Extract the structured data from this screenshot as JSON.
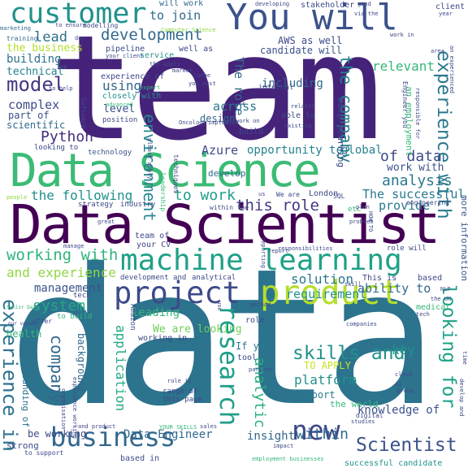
{
  "colors": {
    "background": "#ffffff",
    "palette": [
      "#440154",
      "#482878",
      "#3e4989",
      "#31688e",
      "#26828e",
      "#1f9e89",
      "#35b779",
      "#6ece58",
      "#b5de2b",
      "#fde725"
    ]
  },
  "words": [
    {
      "text": "team",
      "color": "#482677"
    },
    {
      "text": "data",
      "color": "#2c728e"
    },
    {
      "text": "Data Scientist",
      "color": "#440154"
    },
    {
      "text": "Data Science",
      "color": "#35b779"
    },
    {
      "text": "You will",
      "color": "#3b528b"
    },
    {
      "text": "customer",
      "color": "#21918c"
    },
    {
      "text": "machine learning",
      "color": "#1fa187"
    },
    {
      "text": "product",
      "color": "#b5de2b"
    },
    {
      "text": "project",
      "color": "#3e4a89"
    },
    {
      "text": "business",
      "color": "#31688e"
    },
    {
      "text": "research",
      "color": "#1f9e89"
    },
    {
      "text": "new",
      "color": "#3e4989"
    },
    {
      "text": "development",
      "color": "#31688e"
    },
    {
      "text": "the company",
      "color": "#27808e"
    },
    {
      "text": "model",
      "color": "#453781"
    },
    {
      "text": "Python",
      "color": "#472d7b"
    },
    {
      "text": "environment",
      "color": "#25858e"
    },
    {
      "text": "experience with",
      "color": "#2a788e"
    },
    {
      "text": "skills and",
      "color": "#21918c"
    },
    {
      "text": "Scientist",
      "color": "#3b528b"
    },
    {
      "text": "experience in",
      "color": "#2c728e"
    },
    {
      "text": "looking for",
      "color": "#1fa187"
    },
    {
      "text": "working with",
      "color": "#2fb47c"
    },
    {
      "text": "the following",
      "color": "#21918c"
    },
    {
      "text": "this role",
      "color": "#443983"
    },
    {
      "text": "company",
      "color": "#31688e"
    },
    {
      "text": "application",
      "color": "#22a884"
    },
    {
      "text": "analytic",
      "color": "#29af7f"
    },
    {
      "text": "system",
      "color": "#22a884"
    },
    {
      "text": "within",
      "color": "#31688e"
    },
    {
      "text": "analysis",
      "color": "#2a788e"
    },
    {
      "text": "to work",
      "color": "#1f9e89"
    },
    {
      "text": "lead",
      "color": "#2d708e"
    },
    {
      "text": "to join",
      "color": "#31688e"
    },
    {
      "text": "of data",
      "color": "#3e4989"
    },
    {
      "text": "platform",
      "color": "#21918c"
    },
    {
      "text": "solution",
      "color": "#2a788e"
    },
    {
      "text": "and experience",
      "color": "#8fd744"
    },
    {
      "text": "The successful",
      "color": "#2a788e"
    },
    {
      "text": "opportunity to",
      "color": "#26828e"
    },
    {
      "text": "Azure",
      "color": "#3e4989"
    },
    {
      "text": "across",
      "color": "#2a788e"
    },
    {
      "text": "using",
      "color": "#31688e"
    },
    {
      "text": "level",
      "color": "#3b528b"
    },
    {
      "text": "complex",
      "color": "#3e4a89"
    },
    {
      "text": "technical",
      "color": "#26828e"
    },
    {
      "text": "building",
      "color": "#2c728e"
    },
    {
      "text": "the business",
      "color": "#b5de2b"
    },
    {
      "text": "management",
      "color": "#3b528b"
    },
    {
      "text": "requirement",
      "color": "#21918c"
    },
    {
      "text": "ability to",
      "color": "#31688e"
    },
    {
      "text": "key",
      "color": "#21918c"
    },
    {
      "text": "insight",
      "color": "#31688e"
    },
    {
      "text": "knowledge of",
      "color": "#3b528b"
    },
    {
      "text": "Data Engineer",
      "color": "#31688e"
    },
    {
      "text": "be working",
      "color": "#3e4989"
    },
    {
      "text": "If you",
      "color": "#2a788e"
    },
    {
      "text": "TO APPLY",
      "color": "#c8e020"
    },
    {
      "text": "support",
      "color": "#2a788e"
    },
    {
      "text": "global",
      "color": "#26828e"
    },
    {
      "text": "provide",
      "color": "#2a788e"
    },
    {
      "text": "work with",
      "color": "#3b528b"
    },
    {
      "text": "including",
      "color": "#31688e"
    },
    {
      "text": "relevant",
      "color": "#35b779"
    },
    {
      "text": "AWS as well",
      "color": "#3e4989"
    },
    {
      "text": "candidate will",
      "color": "#3b528b"
    },
    {
      "text": "The role",
      "color": "#31688e"
    },
    {
      "text": "scientific",
      "color": "#31688e"
    },
    {
      "text": "part of",
      "color": "#3b528b"
    },
    {
      "text": "design",
      "color": "#31688e"
    },
    {
      "text": "We are looking",
      "color": "#6ece58"
    },
    {
      "text": "leading",
      "color": "#35b779"
    },
    {
      "text": "working in",
      "color": "#3e4989"
    },
    {
      "text": "background",
      "color": "#31688e"
    },
    {
      "text": "understanding of",
      "color": "#2c728e"
    },
    {
      "text": "strong",
      "color": "#3e4989"
    },
    {
      "text": "health",
      "color": "#35b779"
    },
    {
      "text": "develop",
      "color": "#31688e"
    },
    {
      "text": "London",
      "color": "#3e4989"
    },
    {
      "text": "more information",
      "color": "#3b528b"
    },
    {
      "text": "the world",
      "color": "#35b779"
    },
    {
      "text": "Deep Learning",
      "color": "#3e4989"
    },
    {
      "text": "an employment",
      "color": "#35b779"
    },
    {
      "text": "will work",
      "color": "#31688e"
    },
    {
      "text": "stakeholder",
      "color": "#3e4989"
    },
    {
      "text": "client",
      "color": "#3e4989"
    },
    {
      "text": "training",
      "color": "#31688e"
    },
    {
      "text": "marketing",
      "color": "#31688e"
    },
    {
      "text": "pipeline",
      "color": "#3e4989"
    },
    {
      "text": "service",
      "color": "#21918c"
    },
    {
      "text": "well as",
      "color": "#3e4989"
    },
    {
      "text": "experience of",
      "color": "#3e4989"
    },
    {
      "text": "closely with",
      "color": "#21918c"
    },
    {
      "text": "position",
      "color": "#3e4989"
    },
    {
      "text": "internal",
      "color": "#3e4989"
    },
    {
      "text": "able to",
      "color": "#3e4989"
    },
    {
      "text": "build",
      "color": "#3e4989"
    },
    {
      "text": "technology",
      "color": "#3b528b"
    },
    {
      "text": "strategy",
      "color": "#3e4989"
    },
    {
      "text": "industry",
      "color": "#3e4989"
    },
    {
      "text": "team of",
      "color": "#3e4989"
    },
    {
      "text": "your CV",
      "color": "#3e4989"
    },
    {
      "text": "development and",
      "color": "#3e4989"
    },
    {
      "text": "analytical",
      "color": "#3e4989"
    },
    {
      "text": "This is",
      "color": "#3e4989"
    },
    {
      "text": "based",
      "color": "#3e4989"
    },
    {
      "text": "medical",
      "color": "#35b779"
    },
    {
      "text": "tool",
      "color": "#3e4989"
    },
    {
      "text": "role",
      "color": "#3e4989"
    },
    {
      "text": "range of",
      "color": "#3e4989"
    },
    {
      "text": "this page",
      "color": "#3e4989"
    },
    {
      "text": "successful candidate",
      "color": "#21918c"
    },
    {
      "text": "digital",
      "color": "#3e4989"
    },
    {
      "text": "to build",
      "color": "#35b779"
    },
    {
      "text": "tech",
      "color": "#3e4989"
    },
    {
      "text": "offer",
      "color": "#3e4989"
    },
    {
      "text": "Amazon",
      "color": "#3e4989"
    },
    {
      "text": "Software",
      "color": "#3e4989"
    },
    {
      "text": "based in",
      "color": "#3e4989"
    },
    {
      "text": "to support",
      "color": "#3e4989"
    },
    {
      "text": "etc",
      "color": "#35b779"
    },
    {
      "text": "plan",
      "color": "#3e4989"
    },
    {
      "text": "great",
      "color": "#3e4989"
    },
    {
      "text": "SQL",
      "color": "#3e4989"
    },
    {
      "text": "role will",
      "color": "#3e4989"
    },
    {
      "text": "looking to",
      "color": "#3e4989"
    },
    {
      "text": "modelling",
      "color": "#3e4989"
    },
    {
      "text": "to ensure",
      "color": "#3e4989"
    },
    {
      "text": "implement",
      "color": "#3e4989"
    },
    {
      "text": "within the",
      "color": "#3e4989"
    },
    {
      "text": "please apply",
      "color": "#3e4989"
    },
    {
      "text": "engineering",
      "color": "#3e4989"
    },
    {
      "text": "Computer Science",
      "color": "#8fd744"
    },
    {
      "text": "to help",
      "color": "#3e4989"
    },
    {
      "text": "expert",
      "color": "#35b779"
    },
    {
      "text": "Oncology",
      "color": "#3e4989"
    },
    {
      "text": "advanced",
      "color": "#35b779"
    },
    {
      "text": "techniques",
      "color": "#3e4989"
    },
    {
      "text": "leadership",
      "color": "#35b779"
    },
    {
      "text": "Engineer you",
      "color": "#3e4989"
    },
    {
      "text": "related",
      "color": "#3e4989"
    },
    {
      "text": "existing",
      "color": "#3e4989"
    },
    {
      "text": "responsible for",
      "color": "#3e4989"
    },
    {
      "text": "an experienced",
      "color": "#3e4989"
    },
    {
      "text": "method",
      "color": "#3e4989"
    },
    {
      "text": "Senior Data",
      "color": "#35b779"
    },
    {
      "text": "our values",
      "color": "#3e4989"
    },
    {
      "text": "report",
      "color": "#3e4989"
    },
    {
      "text": "people",
      "color": "#8fd744"
    },
    {
      "text": "manage",
      "color": "#3e4989"
    },
    {
      "text": "partner",
      "color": "#3e4989"
    },
    {
      "text": "cloud",
      "color": "#3e4989"
    },
    {
      "text": "problem",
      "color": "#3e4989"
    },
    {
      "text": "NLP",
      "color": "#3e4989"
    },
    {
      "text": "the UK",
      "color": "#3e4989"
    },
    {
      "text": "skill",
      "color": "#3e4989"
    },
    {
      "text": "experience working",
      "color": "#3e4989"
    },
    {
      "text": "organisation",
      "color": "#3e4989"
    },
    {
      "text": "and product",
      "color": "#3e4989"
    },
    {
      "text": "YOUR SKILLS",
      "color": "#35b779"
    },
    {
      "text": "sales",
      "color": "#3e4989"
    },
    {
      "text": "employment businesses",
      "color": "#35b779"
    },
    {
      "text": "impact",
      "color": "#3e4989"
    },
    {
      "text": "studies",
      "color": "#3e4989"
    },
    {
      "text": "group",
      "color": "#3e4989"
    },
    {
      "text": "companies",
      "color": "#3e4989"
    },
    {
      "text": "time",
      "color": "#3e4989"
    },
    {
      "text": "develop and",
      "color": "#3e4989"
    },
    {
      "text": "developing",
      "color": "#3e4989"
    },
    {
      "text": "good",
      "color": "#3e4989"
    },
    {
      "text": "via the",
      "color": "#3e4989"
    },
    {
      "text": "work in",
      "color": "#3e4989"
    },
    {
      "text": "area",
      "color": "#3e4989"
    },
    {
      "text": "year",
      "color": "#3e4989"
    },
    {
      "text": "market",
      "color": "#3e4989"
    },
    {
      "text": "large",
      "color": "#3e4989"
    },
    {
      "text": "you must",
      "color": "#3e4989"
    },
    {
      "text": "work on",
      "color": "#3e4989"
    },
    {
      "text": "day",
      "color": "#3e4989"
    },
    {
      "text": "your client",
      "color": "#3e4989"
    },
    {
      "text": "the Apply",
      "color": "#3e4989"
    },
    {
      "text": "JOB",
      "color": "#3e4989"
    },
    {
      "text": "We are",
      "color": "#3e4989"
    },
    {
      "text": "us",
      "color": "#3e4989"
    },
    {
      "text": "reporting",
      "color": "#3e4989"
    },
    {
      "text": "HOW TO",
      "color": "#3e4989"
    },
    {
      "text": "responsibilities",
      "color": "#3e4989"
    },
    {
      "text": "use",
      "color": "#3e4989"
    },
    {
      "text": "AI",
      "color": "#3e4989"
    },
    {
      "text": "role is",
      "color": "#3e4989"
    },
    {
      "text": "tech",
      "color": "#3e4989"
    }
  ]
}
